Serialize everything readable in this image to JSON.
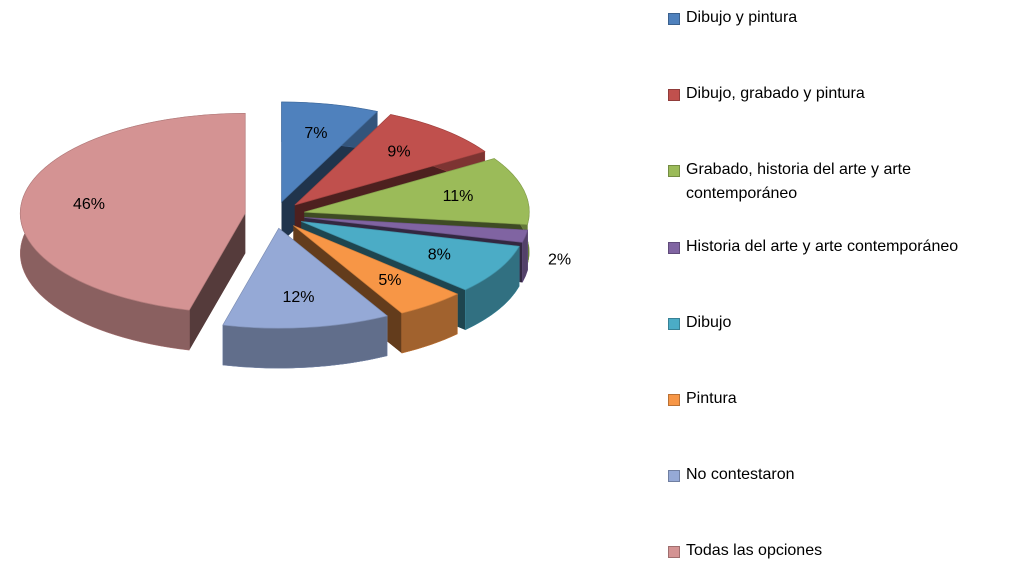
{
  "chart_data": {
    "type": "pie",
    "categories": [
      "Dibujo y pintura",
      "Dibujo, grabado y pintura",
      "Grabado, historia del arte y arte contemporáneo",
      "Historia del arte y arte contemporáneo",
      "Dibujo",
      "Pintura",
      "No contestaron",
      "Todas las opciones"
    ],
    "values": [
      7,
      9,
      11,
      2,
      8,
      5,
      12,
      46
    ],
    "value_labels": [
      "7%",
      "9%",
      "11%",
      "2%",
      "8%",
      "5%",
      "12%",
      "46%"
    ],
    "colors": [
      "#4f81bd",
      "#c0504d",
      "#9bbb59",
      "#8064a2",
      "#4bacc6",
      "#f79646",
      "#95a9d6",
      "#d49393"
    ]
  }
}
